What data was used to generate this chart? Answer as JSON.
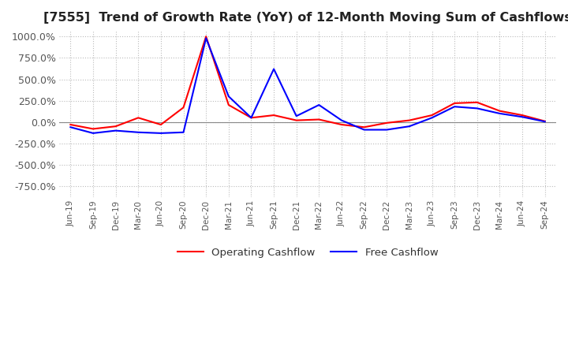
{
  "title": "[7555]  Trend of Growth Rate (YoY) of 12-Month Moving Sum of Cashflows",
  "title_fontsize": 11.5,
  "ylim": [
    -875,
    1075
  ],
  "yticks": [
    -750,
    -500,
    -250,
    0,
    250,
    500,
    750,
    1000
  ],
  "ytick_labels": [
    "-750.0%",
    "-500.0%",
    "-250.0%",
    "0.0%",
    "250.0%",
    "500.0%",
    "750.0%",
    "1000.0%"
  ],
  "background_color": "#ffffff",
  "grid_color": "#bbbbbb",
  "operating_color": "#ff0000",
  "free_color": "#0000ff",
  "x_labels": [
    "Jun-19",
    "Sep-19",
    "Dec-19",
    "Mar-20",
    "Jun-20",
    "Sep-20",
    "Dec-20",
    "Mar-21",
    "Jun-21",
    "Sep-21",
    "Dec-21",
    "Mar-22",
    "Jun-22",
    "Sep-22",
    "Dec-22",
    "Mar-23",
    "Jun-23",
    "Sep-23",
    "Dec-23",
    "Mar-24",
    "Jun-24",
    "Sep-24"
  ],
  "operating_cashflow": [
    -30,
    -80,
    -50,
    50,
    -30,
    170,
    1000,
    200,
    50,
    80,
    20,
    30,
    -30,
    -60,
    -10,
    20,
    80,
    220,
    230,
    130,
    80,
    10
  ],
  "free_cashflow": [
    -60,
    -130,
    -100,
    -120,
    -130,
    -120,
    980,
    300,
    50,
    620,
    70,
    200,
    20,
    -90,
    -90,
    -50,
    50,
    180,
    160,
    100,
    60,
    5
  ],
  "legend_labels": [
    "Operating Cashflow",
    "Free Cashflow"
  ],
  "legend_colors": [
    "#ff0000",
    "#0000ff"
  ],
  "linewidth": 1.5
}
